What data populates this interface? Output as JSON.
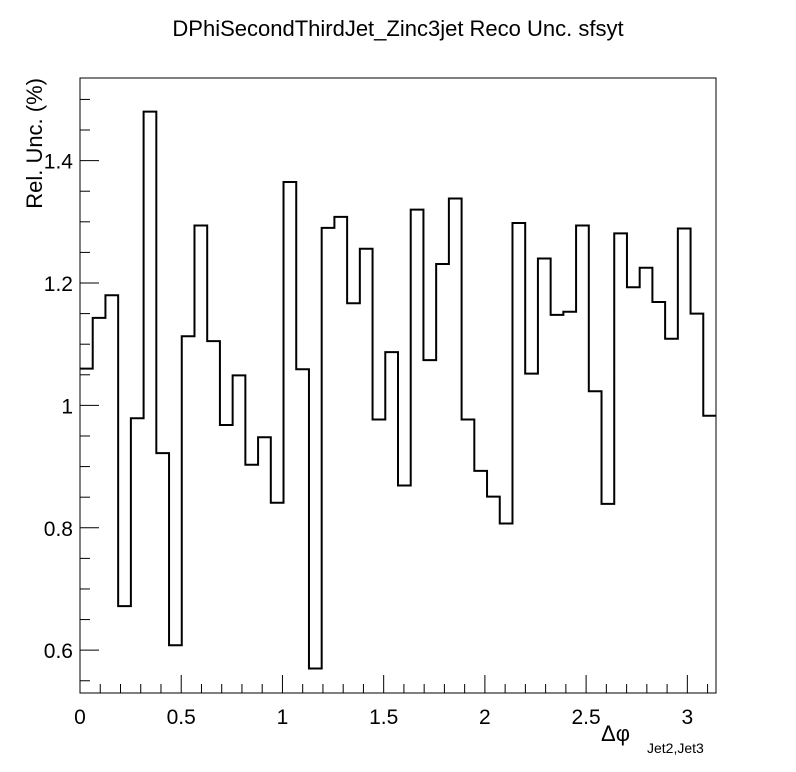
{
  "chart_data": {
    "type": "histogram-step",
    "title": "DPhiSecondThirdJet_Zinc3jet Reco Unc. sfsyt",
    "xlabel": "Δφ",
    "xlabel_subscript": "Jet2,Jet3",
    "ylabel": "Rel. Unc. (%)",
    "xlim": [
      0,
      3.1416
    ],
    "ylim": [
      0.53,
      1.535
    ],
    "x_ticks": [
      {
        "value": 0,
        "label": "0"
      },
      {
        "value": 0.5,
        "label": "0.5"
      },
      {
        "value": 1,
        "label": "1"
      },
      {
        "value": 1.5,
        "label": "1.5"
      },
      {
        "value": 2,
        "label": "2"
      },
      {
        "value": 2.5,
        "label": "2.5"
      },
      {
        "value": 3,
        "label": "3"
      }
    ],
    "y_ticks": [
      {
        "value": 0.6,
        "label": "0.6"
      },
      {
        "value": 0.8,
        "label": "0.8"
      },
      {
        "value": 1.0,
        "label": "1"
      },
      {
        "value": 1.2,
        "label": "1.2"
      },
      {
        "value": 1.4,
        "label": "1.4"
      }
    ],
    "bins": 50,
    "values": [
      1.06,
      1.143,
      1.18,
      0.672,
      0.979,
      1.48,
      0.922,
      0.608,
      1.113,
      1.294,
      1.105,
      0.968,
      1.049,
      0.903,
      0.948,
      0.841,
      1.365,
      1.059,
      0.57,
      1.29,
      1.308,
      1.167,
      1.256,
      0.977,
      1.087,
      0.869,
      1.32,
      1.074,
      1.231,
      1.338,
      0.977,
      0.893,
      0.851,
      0.807,
      1.298,
      1.052,
      1.24,
      1.148,
      1.153,
      1.294,
      1.023,
      0.839,
      1.281,
      1.193,
      1.225,
      1.169,
      1.109,
      1.289,
      1.15,
      0.983
    ],
    "grid": false,
    "legend": "none"
  }
}
